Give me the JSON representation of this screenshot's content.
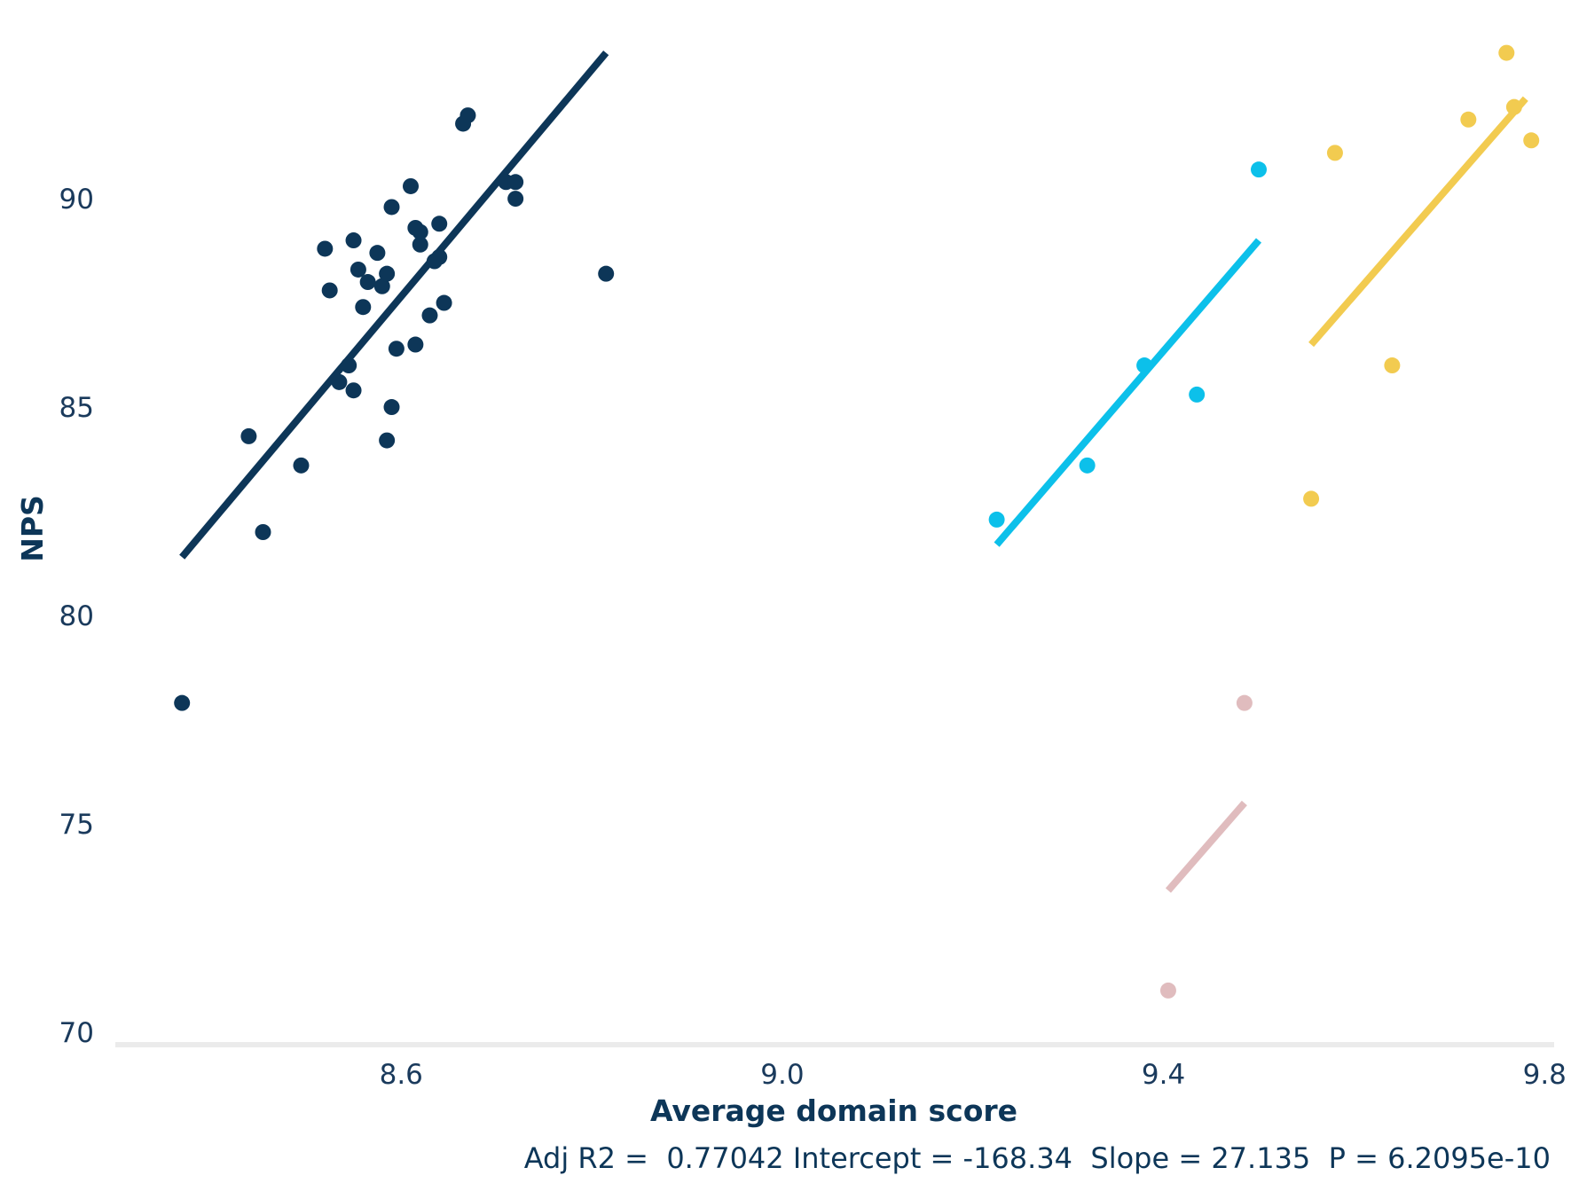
{
  "chart_data": {
    "type": "scatter",
    "title": "",
    "xlabel": "Average domain score",
    "ylabel": "NPS",
    "xlim": [
      8.3,
      9.81
    ],
    "ylim": [
      69.7,
      94.3
    ],
    "x_ticks": [
      8.6,
      9.0,
      9.4,
      9.8
    ],
    "x_tick_labels": [
      "8.6",
      "9.0",
      "9.4",
      "9.8"
    ],
    "y_ticks": [
      70,
      75,
      80,
      85,
      90
    ],
    "y_tick_labels": [
      "70",
      "75",
      "80",
      "85",
      "90"
    ],
    "grid": false,
    "legend": "none",
    "annotation": "Adj R2 =  0.77042 Intercept = -168.34  Slope = 27.135  P = 6.2095e-10",
    "colors": {
      "text": "#0d3658",
      "axis": "#ebebeb"
    },
    "series": [
      {
        "color": "#0d3658",
        "x": [
          8.37,
          8.44,
          8.455,
          8.495,
          8.52,
          8.525,
          8.535,
          8.545,
          8.55,
          8.55,
          8.555,
          8.56,
          8.565,
          8.575,
          8.58,
          8.585,
          8.585,
          8.59,
          8.59,
          8.595,
          8.61,
          8.615,
          8.615,
          8.62,
          8.62,
          8.63,
          8.635,
          8.64,
          8.64,
          8.645,
          8.665,
          8.67,
          8.71,
          8.72,
          8.72,
          8.815
        ],
        "y": [
          77.9,
          84.3,
          82.0,
          83.6,
          88.8,
          87.8,
          85.6,
          86.0,
          85.4,
          89.0,
          88.3,
          87.4,
          88.0,
          88.7,
          87.9,
          84.2,
          88.2,
          89.8,
          85.0,
          86.4,
          90.3,
          89.3,
          86.5,
          88.9,
          89.2,
          87.2,
          88.5,
          89.4,
          88.6,
          87.5,
          91.8,
          92.0,
          90.4,
          90.0,
          90.4,
          88.2
        ],
        "fit": {
          "x": [
            8.37,
            8.815
          ],
          "y": [
            81.4,
            93.5
          ]
        }
      },
      {
        "color": "#0cc0ea",
        "x": [
          9.225,
          9.32,
          9.38,
          9.435,
          9.5
        ],
        "y": [
          82.3,
          83.6,
          86.0,
          85.3,
          90.7
        ],
        "fit": {
          "x": [
            9.225,
            9.5
          ],
          "y": [
            81.7,
            89.0
          ]
        }
      },
      {
        "color": "#f2cb50",
        "x": [
          9.555,
          9.58,
          9.64,
          9.72,
          9.76,
          9.768,
          9.786
        ],
        "y": [
          82.8,
          91.1,
          86.0,
          91.9,
          93.5,
          92.2,
          91.4
        ],
        "fit": {
          "x": [
            9.555,
            9.78
          ],
          "y": [
            86.5,
            92.4
          ]
        }
      },
      {
        "color": "#e0bcbe",
        "x": [
          9.405,
          9.485
        ],
        "y": [
          71.0,
          77.9
        ],
        "fit": {
          "x": [
            9.405,
            9.485
          ],
          "y": [
            73.4,
            75.5
          ]
        }
      }
    ]
  }
}
